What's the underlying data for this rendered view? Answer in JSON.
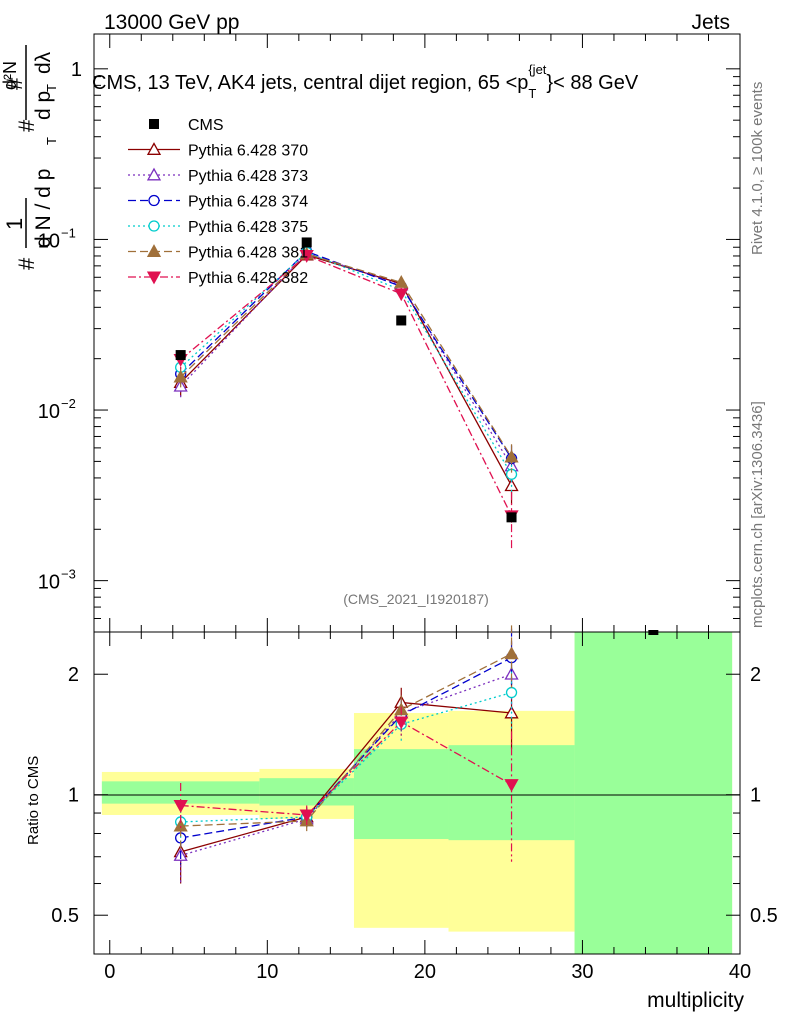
{
  "header": {
    "left": "13000 GeV pp",
    "right": "Jets"
  },
  "side_labels": {
    "rivet": "Rivet 4.1.0, ≥ 100k events",
    "mcplots": "mcplots.cern.ch [arXiv:1306.3436]"
  },
  "chart_data": [
    {
      "type": "line",
      "panel": "main",
      "title": "CMS, 13 TeV, AK4 jets, central dijet region, 65 <p_T^{jet}< 88 GeV",
      "title_parts": {
        "pre": "CMS, 13 TeV, AK4 jets, central dijet region, 65 <p",
        "sub": "T",
        "sup": "{jet",
        "post": "}< 88 GeV"
      },
      "ylabel": "#1/(dN / dp_T) · #d²N/(dp_T dλ)",
      "ylabel_parts": {
        "hash": "#",
        "one": "1",
        "dN": "d N / d p",
        "T": "T",
        "d2N": "d²N",
        "dpTdl": "d p",
        "dl": "dλ"
      },
      "yscale": "log",
      "ylim": [
        0.0005,
        1.6
      ],
      "y_ticks": [
        {
          "value": 0.001,
          "base": "10",
          "exp": "−3"
        },
        {
          "value": 0.01,
          "base": "10",
          "exp": "−2"
        },
        {
          "value": 0.1,
          "base": "10",
          "exp": "−1"
        },
        {
          "value": 1,
          "label": "1"
        }
      ],
      "xlim": [
        -1,
        40
      ],
      "watermark": "(CMS_2021_I1920187)",
      "x": [
        4.5,
        12.5,
        18.5,
        25.5
      ],
      "data": {
        "name": "CMS",
        "color": "#000000",
        "values": [
          0.021,
          0.096,
          0.0335,
          0.00235
        ]
      },
      "offscale_marker": {
        "x": 34.5,
        "label": "CMS point out of range"
      },
      "series": [
        {
          "name": "Pythia 6.428 370",
          "color": "#8B0000",
          "marker": "triangle-open",
          "dash": "",
          "values": [
            0.0145,
            0.081,
            0.055,
            0.0036
          ],
          "err": [
            0.0025,
            0.004,
            0.004,
            0.0008
          ]
        },
        {
          "name": "Pythia 6.428 373",
          "color": "#7B2FBE",
          "marker": "triangle-open",
          "dash": "2,3",
          "values": [
            0.0138,
            0.083,
            0.054,
            0.0047
          ],
          "err": [
            0.0022,
            0.004,
            0.004,
            0.0011
          ]
        },
        {
          "name": "Pythia 6.428 374",
          "color": "#0000CC",
          "marker": "circle-open",
          "dash": "8,4",
          "values": [
            0.0163,
            0.085,
            0.053,
            0.0052
          ],
          "err": [
            0.0022,
            0.004,
            0.004,
            0.001
          ]
        },
        {
          "name": "Pythia 6.428 375",
          "color": "#00CCCC",
          "marker": "circle-open",
          "dash": "2,3",
          "values": [
            0.0178,
            0.084,
            0.0505,
            0.0042
          ],
          "err": [
            0.0022,
            0.004,
            0.004,
            0.0009
          ]
        },
        {
          "name": "Pythia 6.428 381",
          "color": "#A0703A",
          "marker": "triangle-filled",
          "dash": "8,4",
          "values": [
            0.0156,
            0.082,
            0.056,
            0.0053
          ],
          "err": [
            0.0022,
            0.004,
            0.004,
            0.001
          ]
        },
        {
          "name": "Pythia 6.428 382",
          "color": "#E01050",
          "marker": "triangle-down-filled",
          "dash": "8,3,2,3",
          "values": [
            0.0198,
            0.0805,
            0.048,
            0.0024
          ],
          "err": [
            0.0025,
            0.004,
            0.004,
            0.0009
          ]
        }
      ]
    },
    {
      "type": "line",
      "panel": "ratio",
      "ylabel": "Ratio to CMS",
      "xlabel": "multiplicity",
      "yscale": "log",
      "ylim": [
        0.4,
        2.55
      ],
      "y_ticks": [
        {
          "value": 0.5,
          "label": "0.5"
        },
        {
          "value": 1,
          "label": "1"
        },
        {
          "value": 2,
          "label": "2"
        }
      ],
      "x_ticks": [
        0,
        10,
        20,
        30,
        40
      ],
      "xlim": [
        -1,
        40
      ],
      "bands": [
        {
          "x0": -0.5,
          "x1": 9.5,
          "yellow": [
            0.89,
            1.14
          ],
          "green": [
            0.95,
            1.08
          ]
        },
        {
          "x0": 9.5,
          "x1": 15.5,
          "yellow": [
            0.87,
            1.16
          ],
          "green": [
            0.94,
            1.1
          ]
        },
        {
          "x0": 15.5,
          "x1": 21.5,
          "yellow": [
            0.465,
            1.6
          ],
          "green": [
            0.775,
            1.3
          ]
        },
        {
          "x0": 21.5,
          "x1": 29.5,
          "yellow": [
            0.455,
            1.62
          ],
          "green": [
            0.77,
            1.33
          ]
        },
        {
          "x0": 29.5,
          "x1": 39.5,
          "yellow": [
            0.4,
            2.55
          ],
          "green": [
            0.4,
            2.55
          ]
        }
      ],
      "x": [
        4.5,
        12.5,
        18.5,
        25.5
      ],
      "series": [
        {
          "name": "Pythia 6.428 370",
          "values": [
            0.72,
            0.88,
            1.7,
            1.6
          ],
          "err": [
            0.12,
            0.05,
            0.15,
            0.3
          ]
        },
        {
          "name": "Pythia 6.428 373",
          "values": [
            0.705,
            0.87,
            1.6,
            2.0
          ],
          "err": [
            0.11,
            0.05,
            0.14,
            0.4
          ]
        },
        {
          "name": "Pythia 6.428 374",
          "values": [
            0.78,
            0.88,
            1.58,
            2.2
          ],
          "err": [
            0.11,
            0.05,
            0.14,
            0.4
          ]
        },
        {
          "name": "Pythia 6.428 375",
          "values": [
            0.855,
            0.88,
            1.5,
            1.8
          ],
          "err": [
            0.11,
            0.05,
            0.14,
            0.35
          ]
        },
        {
          "name": "Pythia 6.428 381",
          "values": [
            0.835,
            0.86,
            1.63,
            2.25
          ],
          "err": [
            0.11,
            0.05,
            0.14,
            0.4
          ]
        },
        {
          "name": "Pythia 6.428 382",
          "values": [
            0.94,
            0.89,
            1.52,
            1.06
          ],
          "err": [
            0.13,
            0.05,
            0.14,
            0.38
          ]
        }
      ]
    }
  ]
}
